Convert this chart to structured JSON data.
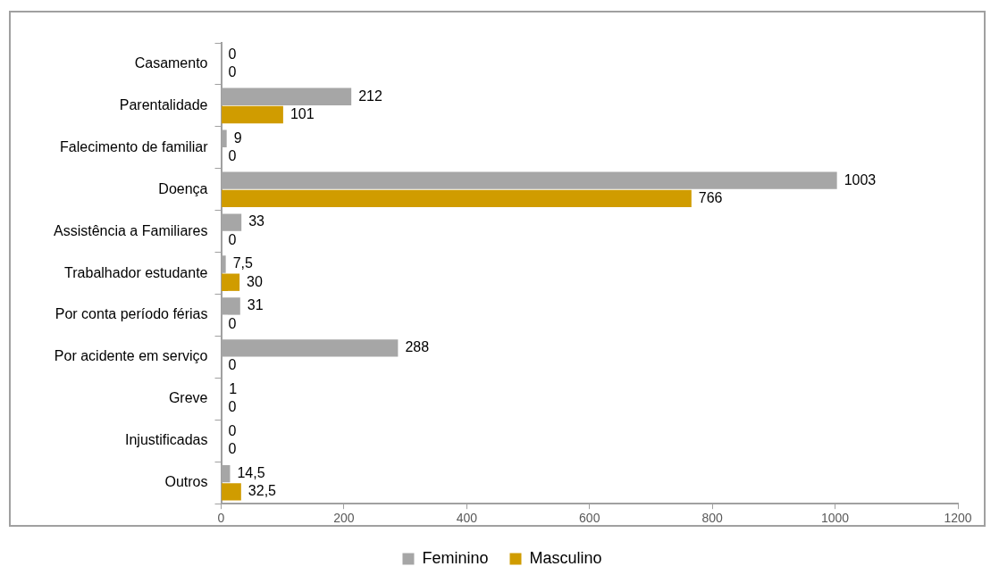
{
  "chart_data": {
    "type": "bar",
    "orientation": "horizontal",
    "categories": [
      "Casamento",
      "Parentalidade",
      "Falecimento de familiar",
      "Doença",
      "Assistência a Familiares",
      "Trabalhador estudante",
      "Por conta período férias",
      "Por acidente em serviço",
      "Greve",
      "Injustificadas",
      "Outros"
    ],
    "series": [
      {
        "name": "Feminino",
        "color": "#a6a6a6",
        "values": [
          0,
          212,
          9,
          1003,
          33,
          7.5,
          31,
          288,
          1,
          0,
          14.5
        ],
        "value_labels": [
          "0",
          "212",
          "9",
          "1003",
          "33",
          "7,5",
          "31",
          "288",
          "1",
          "0",
          "14,5"
        ]
      },
      {
        "name": "Masculino",
        "color": "#d09c00",
        "values": [
          0,
          101,
          0,
          766,
          0,
          30,
          0,
          0,
          0,
          0,
          32.5
        ],
        "value_labels": [
          "0",
          "101",
          "0",
          "766",
          "0",
          "30",
          "0",
          "0",
          "0",
          "0",
          "32,5"
        ]
      }
    ],
    "xlim": [
      0,
      1200
    ],
    "xticks": [
      0,
      200,
      400,
      600,
      800,
      1000,
      1200
    ],
    "grid": false,
    "legend": "bottom"
  }
}
